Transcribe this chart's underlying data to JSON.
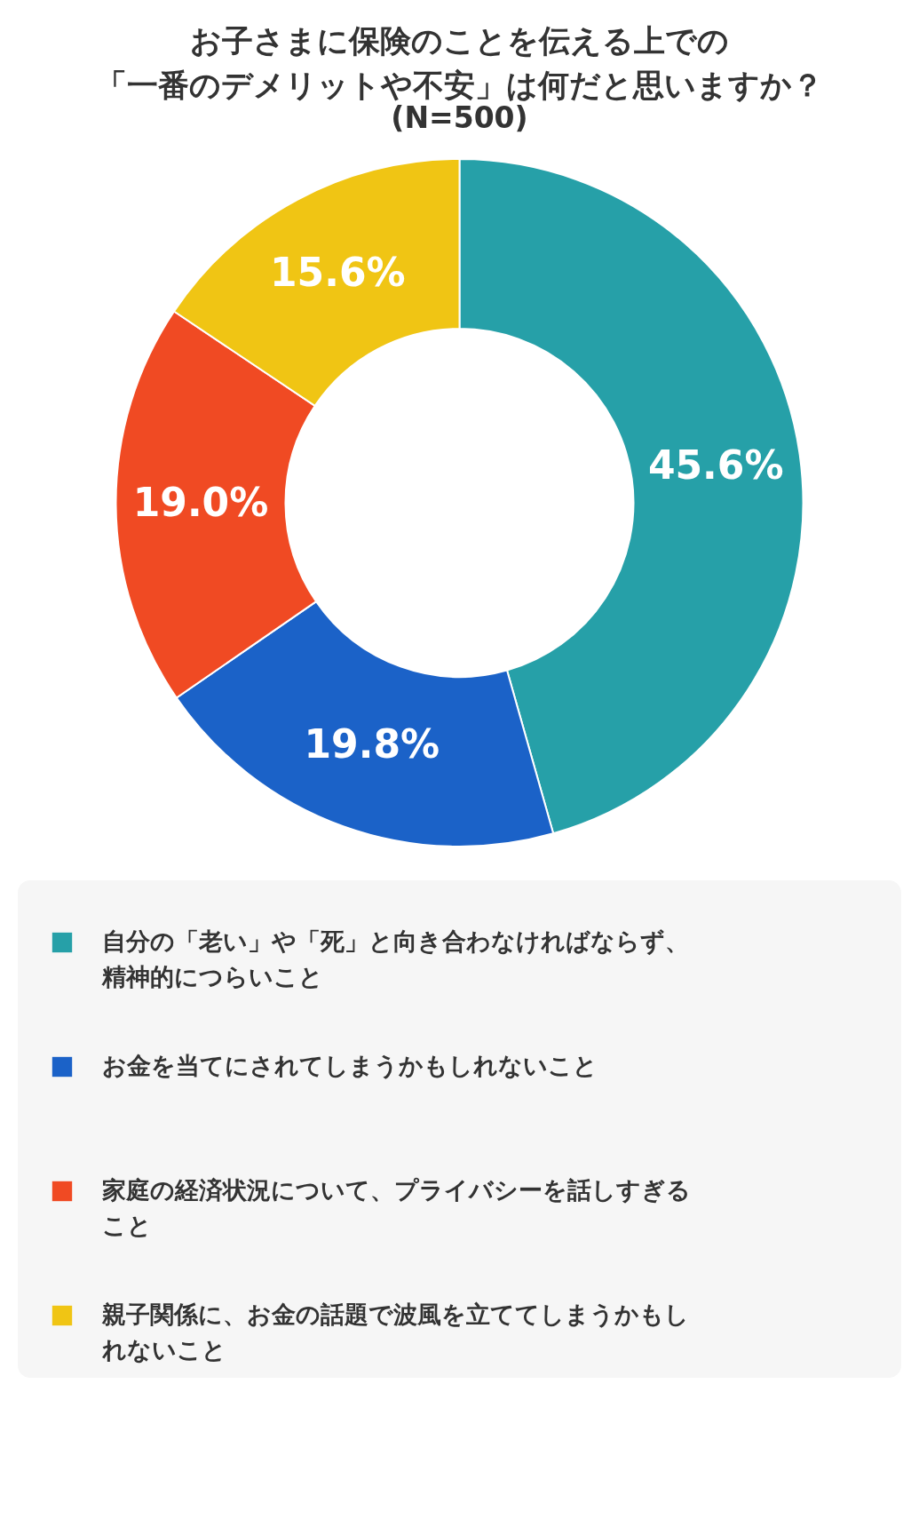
{
  "chart_data": {
    "type": "donut",
    "title": "お子さまに保険のことを伝える上での「一番のデメリットや不安」は何だと思いますか？",
    "subtitle": "(N=500)",
    "categories": [
      "自分の「老い」や「死」と向き合わなければならず、精神的につらいこと",
      "お金を当てにされてしまうかもしれないこと",
      "家庭の経済状況について、プライバシーを話しすぎること",
      "親子関係に、お金の話題で波風を立ててしまうかもしれないこと"
    ],
    "values": [
      45.6,
      19.8,
      19.0,
      15.6
    ],
    "value_labels": [
      "45.6%",
      "19.8%",
      "19.0%",
      "15.6%"
    ],
    "colors": [
      "#26a0a8",
      "#1b62c8",
      "#f04a23",
      "#f0c514"
    ],
    "legend": "bottom"
  }
}
